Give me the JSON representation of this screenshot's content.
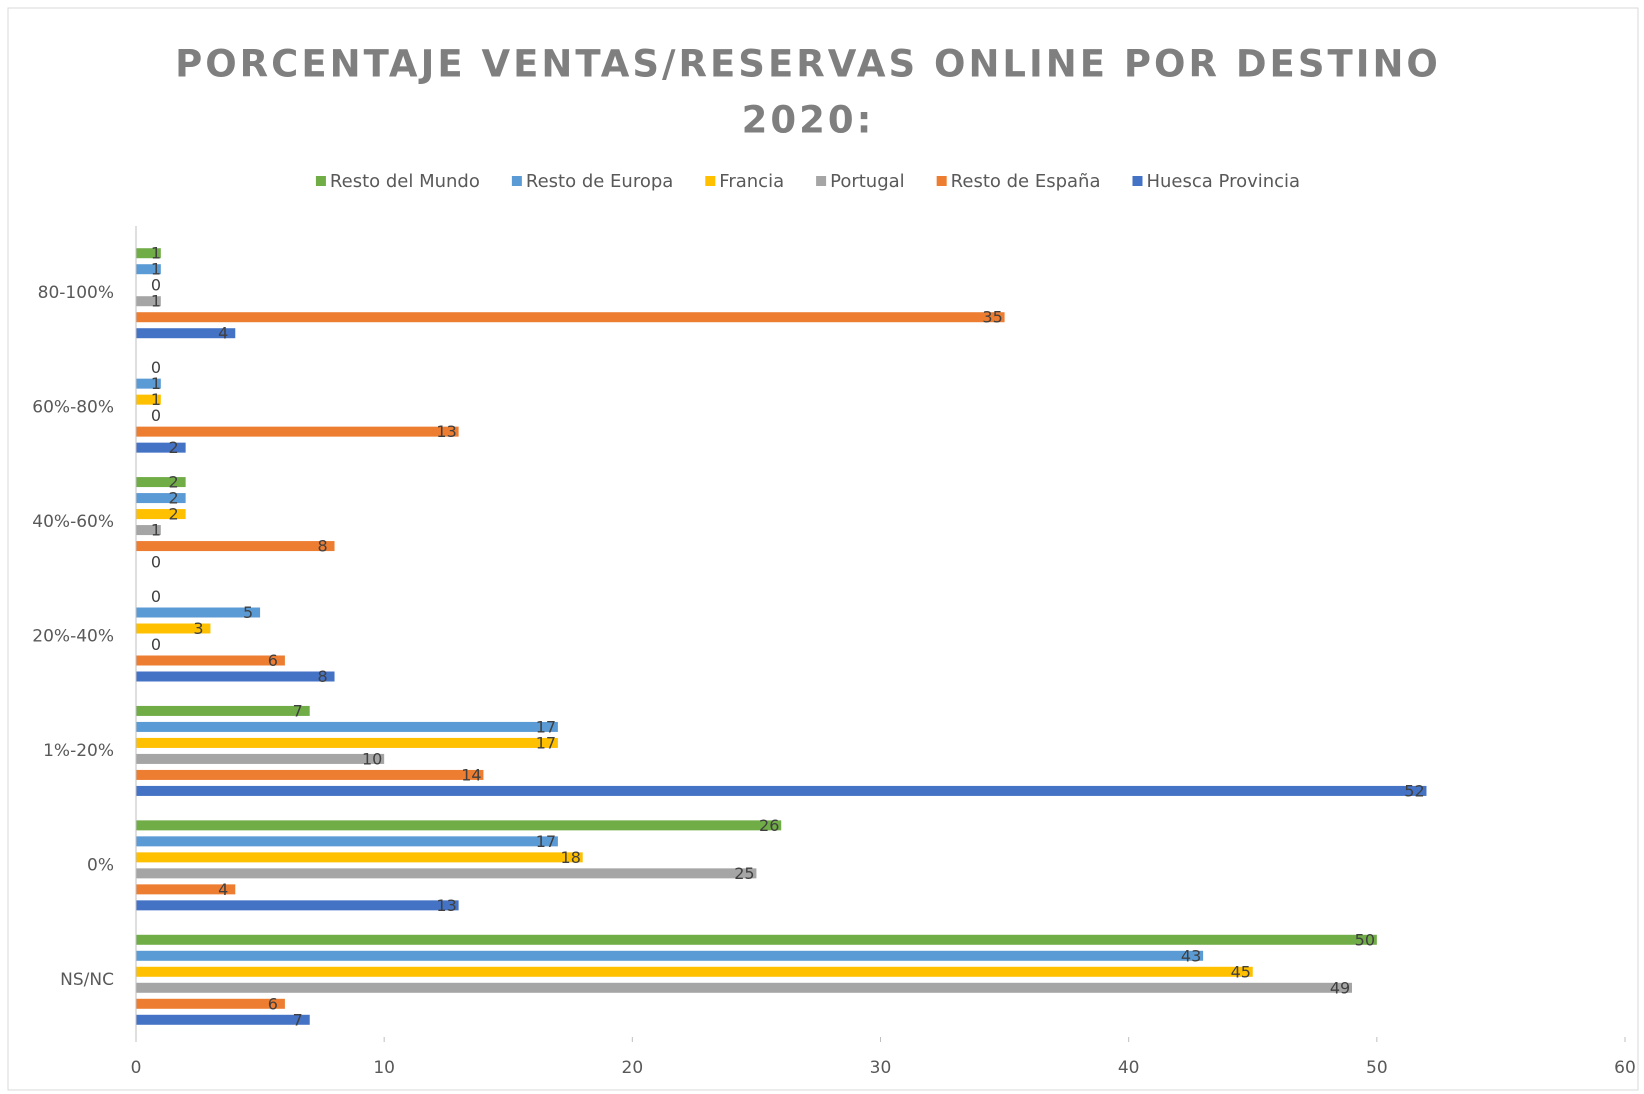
{
  "chart_data": {
    "type": "hbar",
    "title": [
      "PORCENTAJE VENTAS/RESERVAS ONLINE POR DESTINO",
      "2020:"
    ],
    "categories": [
      "NS/NC",
      "0%",
      "1%-20%",
      "20%-40%",
      "40%-60%",
      "60%-80%",
      "80-100%"
    ],
    "series": [
      {
        "name": "Resto del Mundo",
        "color": "#70ad47",
        "values": [
          50,
          26,
          7,
          0,
          2,
          0,
          1
        ]
      },
      {
        "name": "Resto de Europa",
        "color": "#5b9bd5",
        "values": [
          43,
          17,
          17,
          5,
          2,
          1,
          1
        ]
      },
      {
        "name": "Francia",
        "color": "#ffc000",
        "values": [
          45,
          18,
          17,
          3,
          2,
          1,
          0
        ]
      },
      {
        "name": "Portugal",
        "color": "#a5a5a5",
        "values": [
          49,
          25,
          10,
          0,
          1,
          0,
          1
        ]
      },
      {
        "name": "Resto de España",
        "color": "#ed7d31",
        "values": [
          6,
          4,
          14,
          6,
          8,
          13,
          35
        ]
      },
      {
        "name": "Huesca Provincia",
        "color": "#4472c4",
        "values": [
          7,
          13,
          52,
          8,
          0,
          2,
          4
        ]
      }
    ],
    "xlim": [
      0,
      60
    ],
    "xticks": [
      0,
      10,
      20,
      30,
      40,
      50,
      60
    ],
    "legend": "top"
  }
}
